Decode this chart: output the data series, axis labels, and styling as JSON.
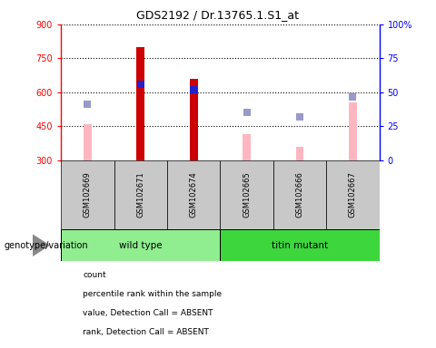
{
  "title": "GDS2192 / Dr.13765.1.S1_at",
  "samples": [
    "GSM102669",
    "GSM102671",
    "GSM102674",
    "GSM102665",
    "GSM102666",
    "GSM102667"
  ],
  "ylim_left": [
    300,
    900
  ],
  "ylim_right": [
    0,
    100
  ],
  "yticks_left": [
    300,
    450,
    600,
    750,
    900
  ],
  "yticks_right": [
    0,
    25,
    50,
    75,
    100
  ],
  "ytick_labels_right": [
    "0",
    "25",
    "50",
    "75",
    "100%"
  ],
  "red_bars": [
    null,
    800,
    660,
    null,
    null,
    null
  ],
  "pink_bars": [
    460,
    null,
    null,
    415,
    360,
    555
  ],
  "blue_squares": [
    null,
    635,
    610,
    null,
    null,
    null
  ],
  "lavender_squares": [
    545,
    null,
    null,
    510,
    490,
    580
  ],
  "red_color": "#cc0000",
  "pink_color": "#ffb6c1",
  "blue_color": "#2222cc",
  "lavender_color": "#9999cc",
  "group_bg_wild": "#90EE90",
  "group_bg_titin": "#3DD63D",
  "sample_box_bg": "#c8c8c8",
  "bar_width": 0.15,
  "sq_size": 35,
  "legend_labels": [
    "count",
    "percentile rank within the sample",
    "value, Detection Call = ABSENT",
    "rank, Detection Call = ABSENT"
  ],
  "legend_colors": [
    "#cc0000",
    "#2222cc",
    "#ffb6c1",
    "#9999cc"
  ],
  "group_label": "genotype/variation"
}
